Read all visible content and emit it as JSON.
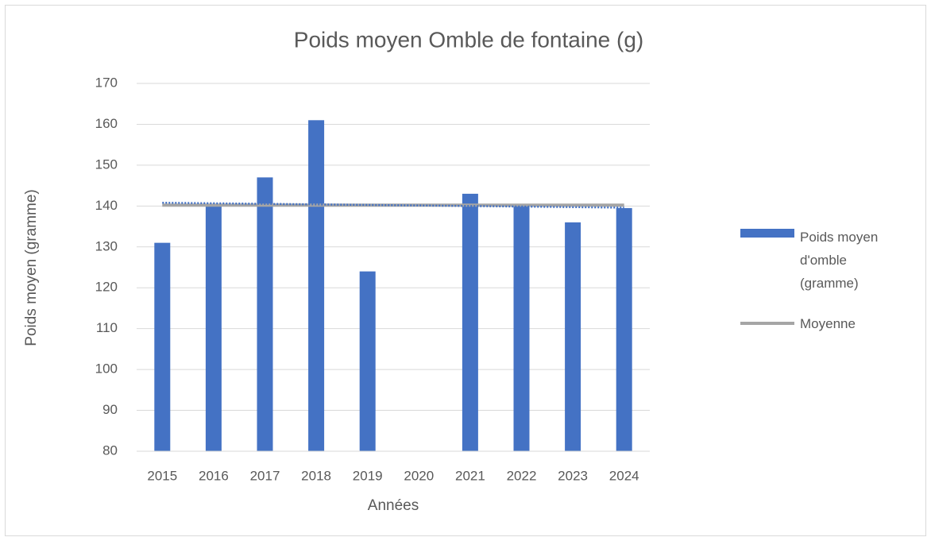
{
  "chart_data": {
    "type": "bar",
    "title": "Poids moyen Omble de fontaine (g)",
    "x_label": "Années",
    "y_label": "Poids moyen (gramme)",
    "categories": [
      "2015",
      "2016",
      "2017",
      "2018",
      "2019",
      "2020",
      "2021",
      "2022",
      "2023",
      "2024"
    ],
    "series": [
      {
        "name": "Poids moyen d'omble (gramme)",
        "type": "bar",
        "color": "#4472c4",
        "values": [
          131,
          140,
          147,
          161,
          124,
          null,
          143,
          140,
          136,
          139.5
        ]
      },
      {
        "name": "Moyenne",
        "type": "line",
        "color": "#a5a5a5",
        "values": [
          140.2,
          140.2,
          140.2,
          140.2,
          140.2,
          140.2,
          140.2,
          140.2,
          140.2,
          140.2
        ]
      }
    ],
    "trendline": {
      "color": "#4472c4",
      "values": [
        140.8,
        139.6
      ]
    },
    "ylim": [
      80,
      170
    ],
    "yticks": [
      80,
      90,
      100,
      110,
      120,
      130,
      140,
      150,
      160,
      170
    ],
    "grid": true,
    "legend": "right"
  }
}
